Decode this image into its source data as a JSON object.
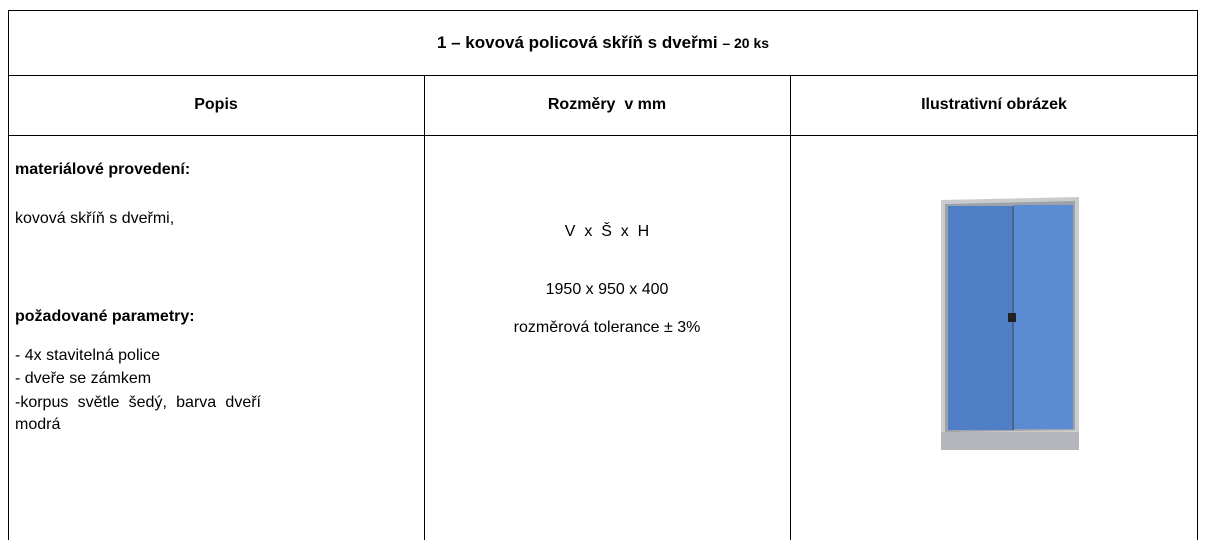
{
  "table": {
    "title": {
      "main": "1 – kovová policová skříň s dveřmi",
      "suffix": "– 20 ks"
    },
    "headers": [
      "Popis",
      "Rozměry  v mm",
      "Ilustrativní obrázek"
    ],
    "description": {
      "material_heading": "materiálové provedení:",
      "material_text": "kovová skříň s dveřmi,",
      "params_heading": "požadované parametry:",
      "params": [
        "- 4x stavitelná police",
        "- dveře se zámkem",
        "-korpus světle šedý, barva dveří modrá"
      ]
    },
    "dimensions": {
      "axes": "V  x  Š  x  H",
      "size": "1950 x 950 x 400",
      "tolerance": "rozměrová tolerance ± 3%"
    }
  }
}
